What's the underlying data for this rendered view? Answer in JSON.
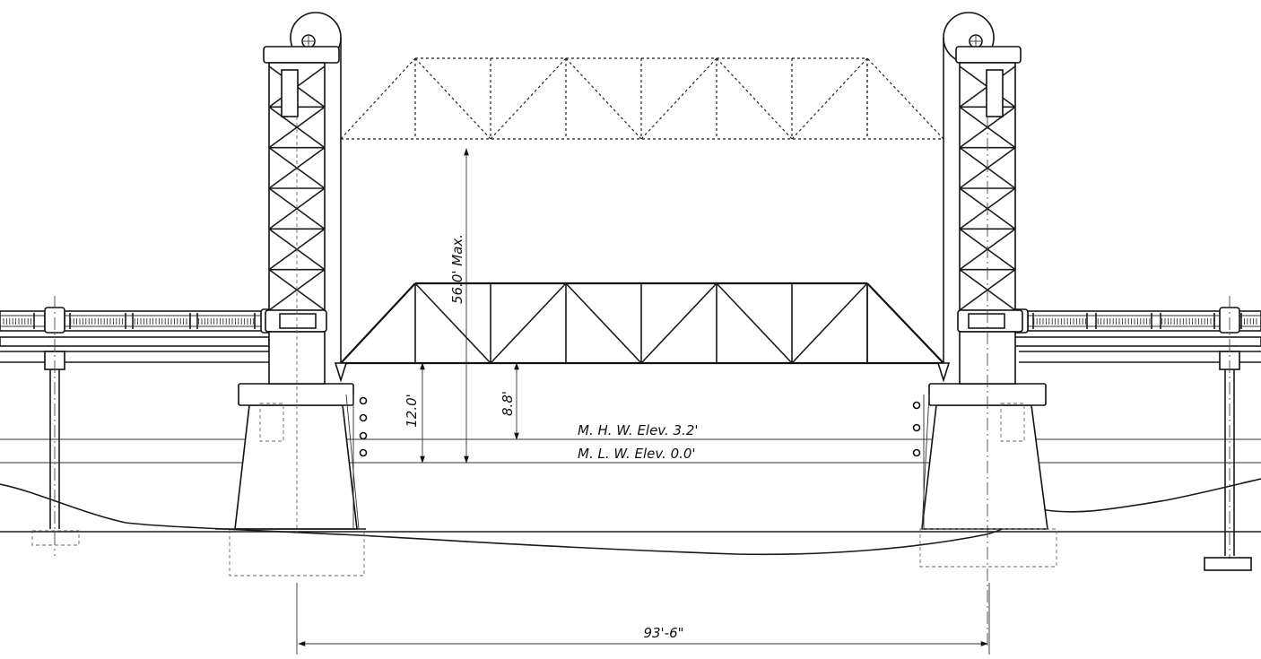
{
  "labels": {
    "clearance_raised": "56.0' Max.",
    "clearance_mlw": "12.0'",
    "clearance_mhw": "8.8'",
    "mhw": "M. H. W.  Elev. 3.2'",
    "mlw": "M. L. W.  Elev. 0.0'",
    "span": "93'-6\""
  }
}
